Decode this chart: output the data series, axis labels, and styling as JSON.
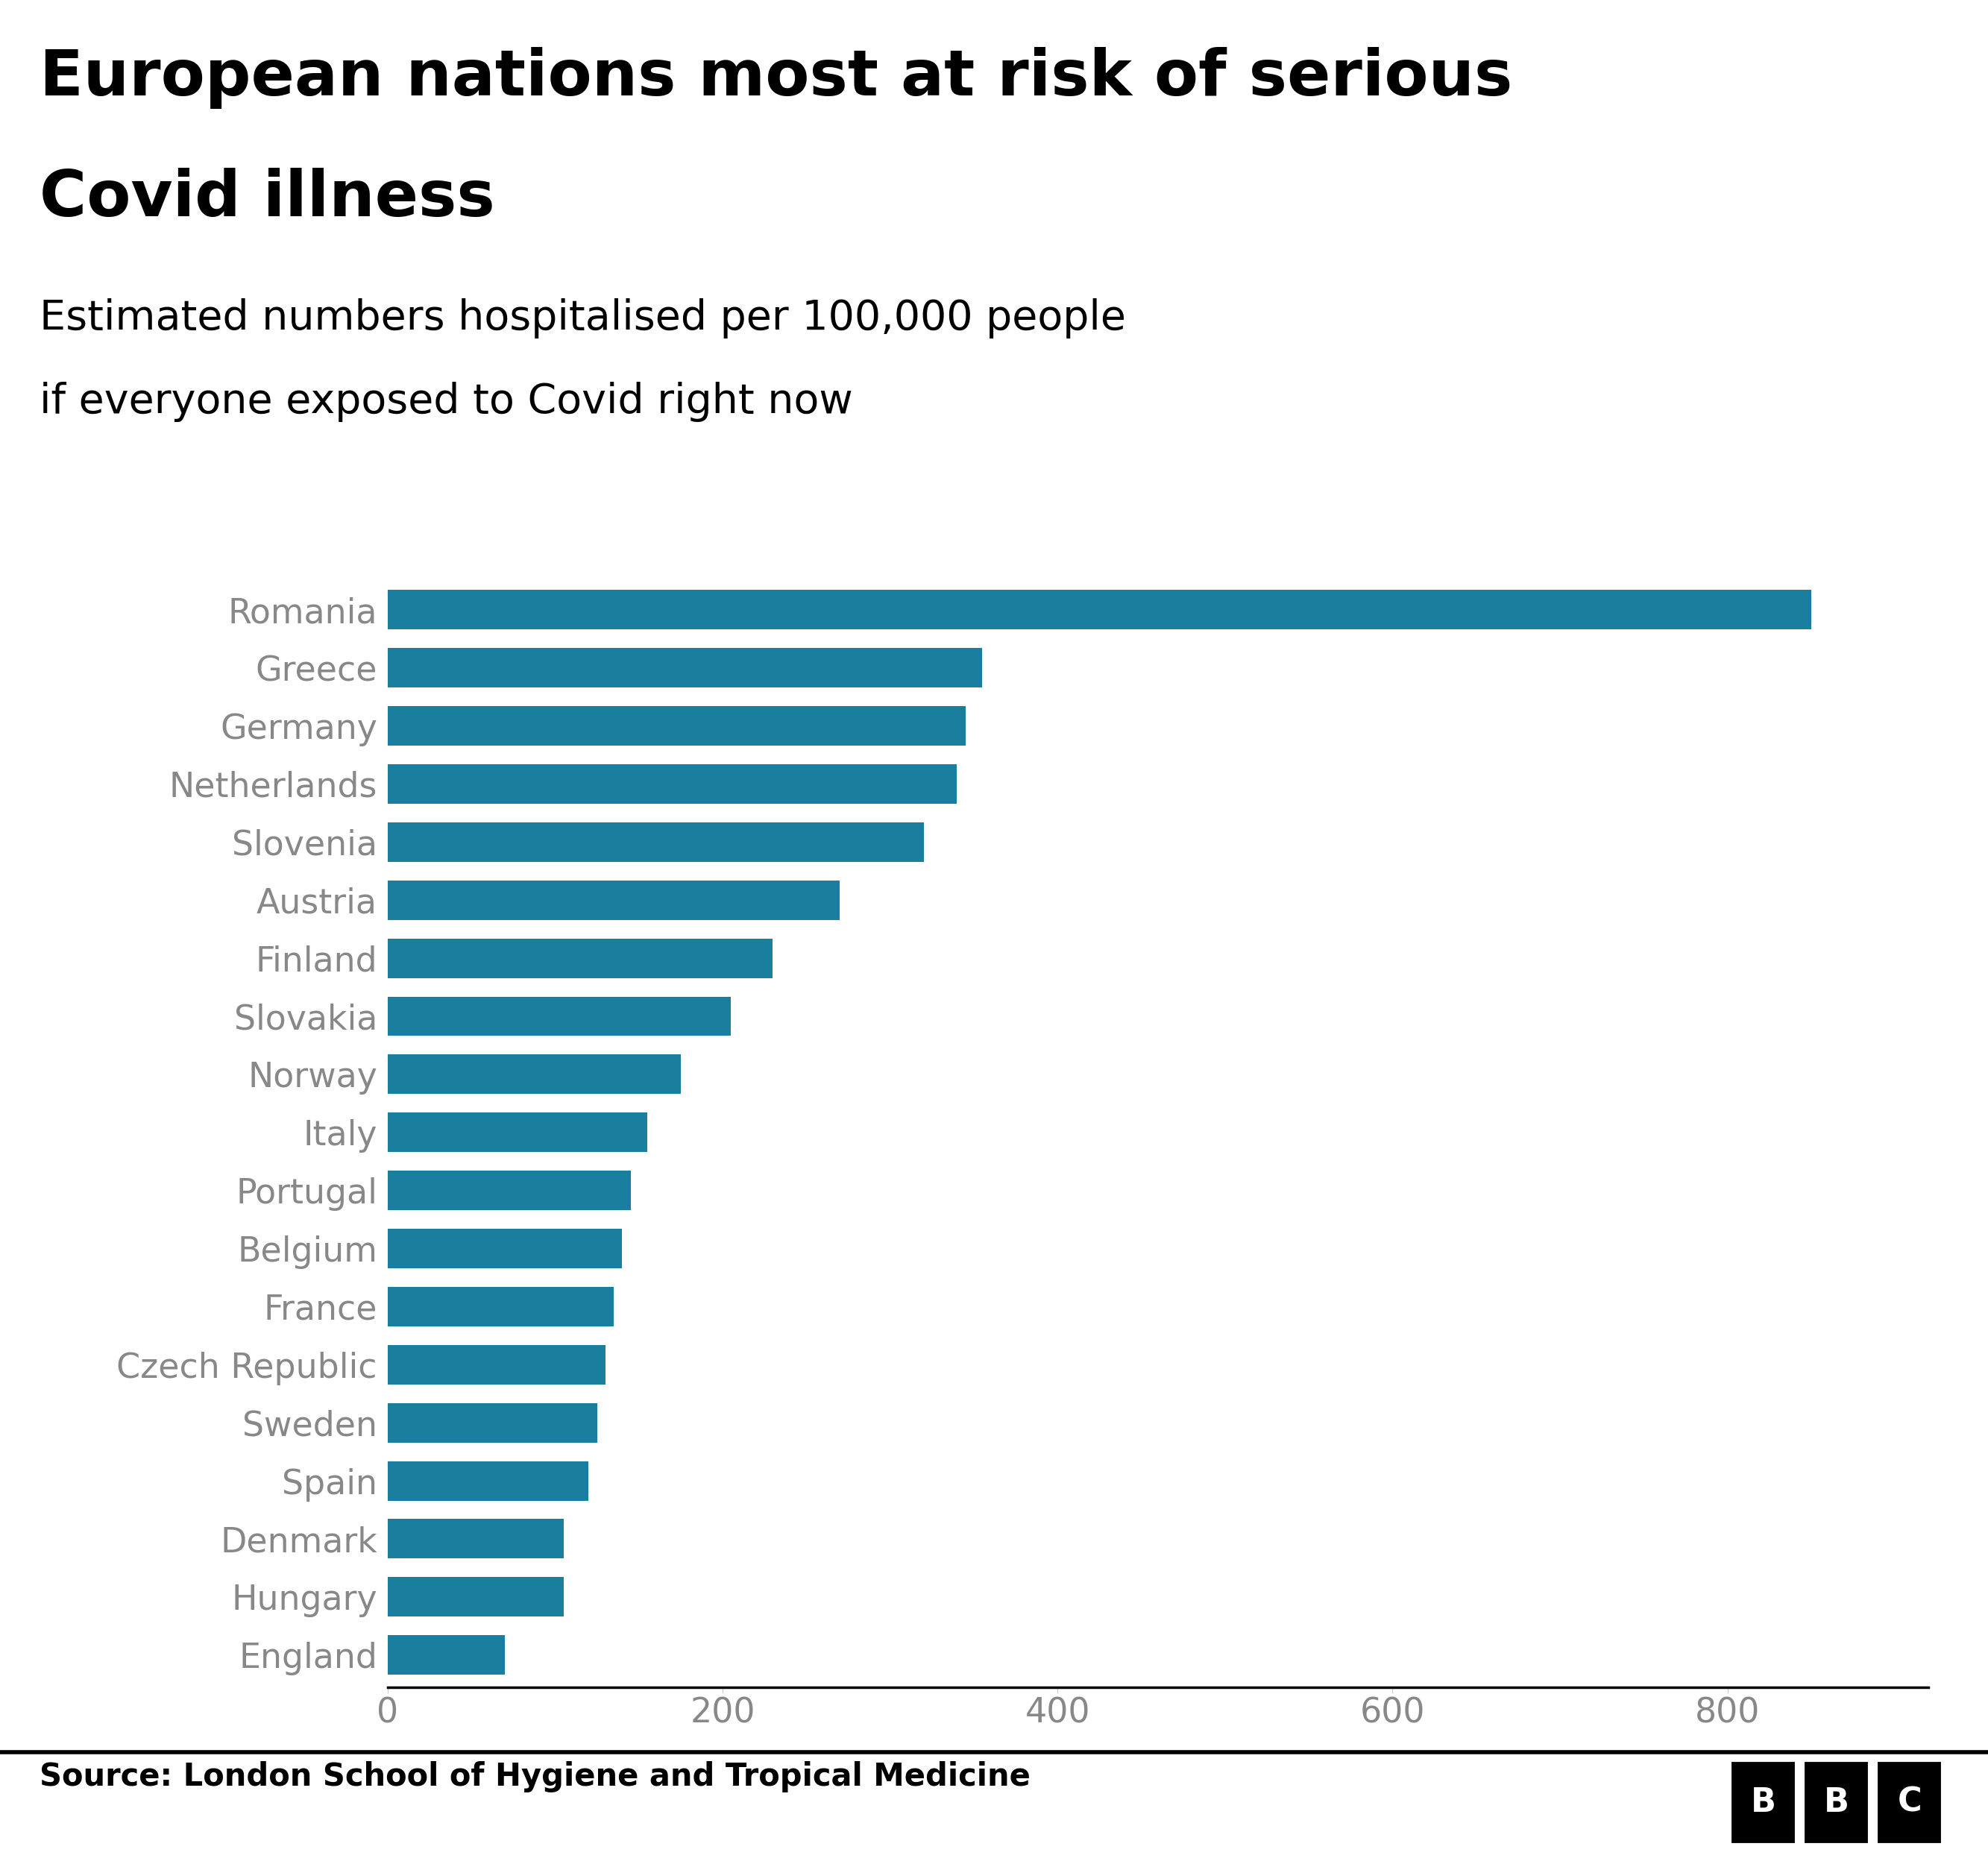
{
  "title_line1": "European nations most at risk of serious",
  "title_line2": "Covid illness",
  "subtitle_line1": "Estimated numbers hospitalised per 100,000 people",
  "subtitle_line2": "if everyone exposed to Covid right now",
  "source": "Source: London School of Hygiene and Tropical Medicine",
  "categories": [
    "Romania",
    "Greece",
    "Germany",
    "Netherlands",
    "Slovenia",
    "Austria",
    "Finland",
    "Slovakia",
    "Norway",
    "Italy",
    "Portugal",
    "Belgium",
    "France",
    "Czech Republic",
    "Sweden",
    "Spain",
    "Denmark",
    "Hungary",
    "England"
  ],
  "values": [
    850,
    355,
    345,
    340,
    320,
    270,
    230,
    205,
    175,
    155,
    145,
    140,
    135,
    130,
    125,
    120,
    105,
    105,
    70
  ],
  "bar_color": "#1a7f9e",
  "label_color": "#888888",
  "title_color": "#000000",
  "subtitle_color": "#000000",
  "source_color": "#000000",
  "background_color": "#ffffff",
  "xlim": [
    0,
    920
  ],
  "xticks": [
    0,
    200,
    400,
    600,
    800
  ],
  "title_fontsize": 62,
  "subtitle_fontsize": 40,
  "label_fontsize": 33,
  "tick_fontsize": 33,
  "source_fontsize": 30,
  "bbc_fontsize": 32
}
